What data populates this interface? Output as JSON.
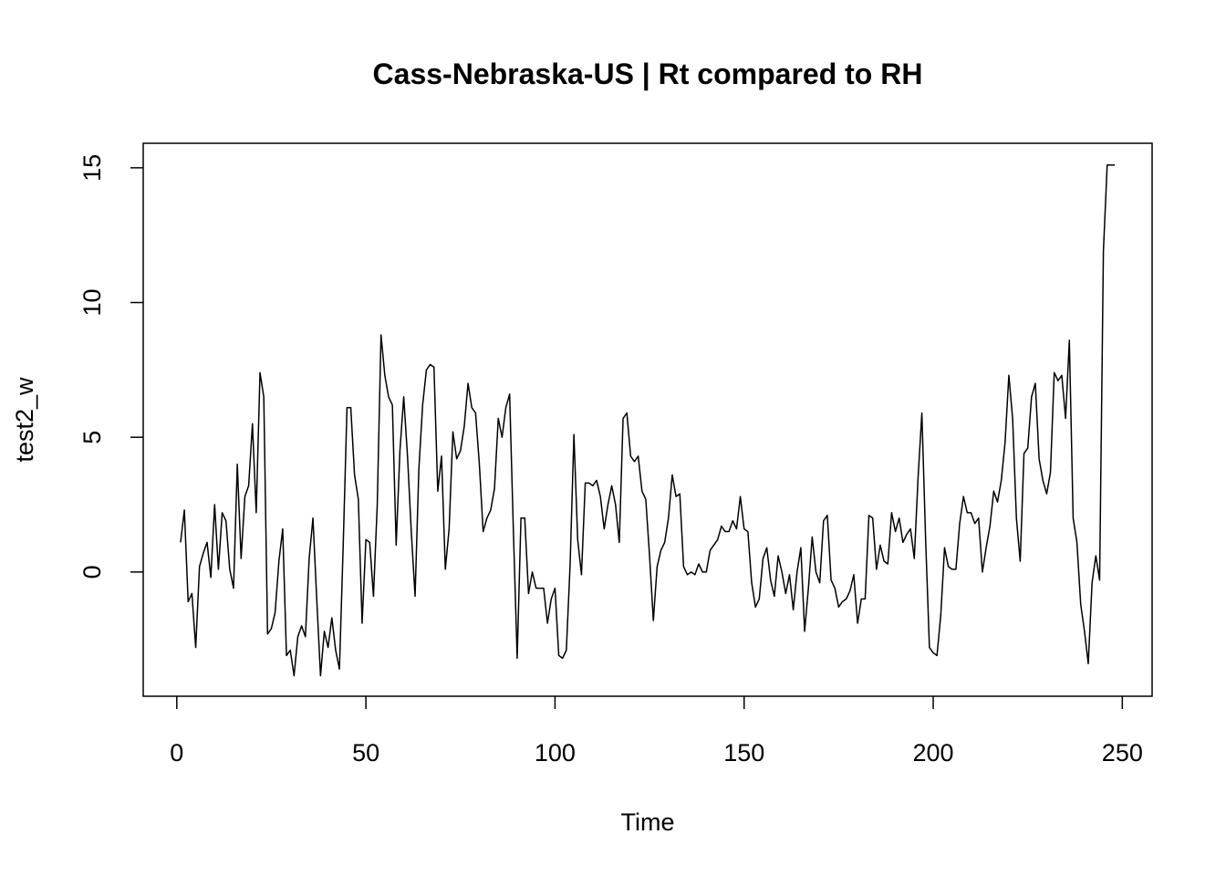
{
  "chart_data": {
    "type": "line",
    "title": "Cass-Nebraska-US | Rt compared to RH",
    "xlabel": "Time",
    "ylabel": "test2_w",
    "color": "#000000",
    "xlim": [
      -8.88,
      257.88
    ],
    "ylim": [
      -4.61,
      15.91
    ],
    "xticks": [
      0,
      50,
      100,
      150,
      200,
      250
    ],
    "yticks": [
      0,
      5,
      10,
      15
    ],
    "x": [
      1,
      2,
      3,
      4,
      5,
      6,
      7,
      8,
      9,
      10,
      11,
      12,
      13,
      14,
      15,
      16,
      17,
      18,
      19,
      20,
      21,
      22,
      23,
      24,
      25,
      26,
      27,
      28,
      29,
      30,
      31,
      32,
      33,
      34,
      35,
      36,
      37,
      38,
      39,
      40,
      41,
      42,
      43,
      44,
      45,
      46,
      47,
      48,
      49,
      50,
      51,
      52,
      53,
      54,
      55,
      56,
      57,
      58,
      59,
      60,
      61,
      62,
      63,
      64,
      65,
      66,
      67,
      68,
      69,
      70,
      71,
      72,
      73,
      74,
      75,
      76,
      77,
      78,
      79,
      80,
      81,
      82,
      83,
      84,
      85,
      86,
      87,
      88,
      89,
      90,
      91,
      92,
      93,
      94,
      95,
      96,
      97,
      98,
      99,
      100,
      101,
      102,
      103,
      104,
      105,
      106,
      107,
      108,
      109,
      110,
      111,
      112,
      113,
      114,
      115,
      116,
      117,
      118,
      119,
      120,
      121,
      122,
      123,
      124,
      125,
      126,
      127,
      128,
      129,
      130,
      131,
      132,
      133,
      134,
      135,
      136,
      137,
      138,
      139,
      140,
      141,
      142,
      143,
      144,
      145,
      146,
      147,
      148,
      149,
      150,
      151,
      152,
      153,
      154,
      155,
      156,
      157,
      158,
      159,
      160,
      161,
      162,
      163,
      164,
      165,
      166,
      167,
      168,
      169,
      170,
      171,
      172,
      173,
      174,
      175,
      176,
      177,
      178,
      179,
      180,
      181,
      182,
      183,
      184,
      185,
      186,
      187,
      188,
      189,
      190,
      191,
      192,
      193,
      194,
      195,
      196,
      197,
      198,
      199,
      200,
      201,
      202,
      203,
      204,
      205,
      206,
      207,
      208,
      209,
      210,
      211,
      212,
      213,
      214,
      215,
      216,
      217,
      218,
      219,
      220,
      221,
      222,
      223,
      224,
      225,
      226,
      227,
      228,
      229,
      230,
      231,
      232,
      233,
      234,
      235,
      236,
      237,
      238,
      239,
      240,
      241,
      242,
      243,
      244,
      245,
      246,
      247,
      248
    ],
    "values": [
      1.1,
      2.3,
      -1.1,
      -0.8,
      -2.8,
      0.2,
      0.7,
      1.1,
      -0.2,
      2.5,
      0.1,
      2.2,
      1.9,
      0.1,
      -0.6,
      4.0,
      0.5,
      2.8,
      3.2,
      5.5,
      2.2,
      7.4,
      6.5,
      -2.3,
      -2.1,
      -1.5,
      0.4,
      1.6,
      -3.1,
      -2.9,
      -3.85,
      -2.4,
      -2.0,
      -2.4,
      0.5,
      2.0,
      -1.0,
      -3.85,
      -2.2,
      -2.8,
      -1.7,
      -2.9,
      -3.6,
      1.0,
      6.1,
      6.1,
      3.6,
      2.7,
      -1.9,
      1.2,
      1.1,
      -0.9,
      2.5,
      8.8,
      7.3,
      6.5,
      6.2,
      1.0,
      4.5,
      6.5,
      4.3,
      1.5,
      -0.9,
      3.8,
      6.2,
      7.5,
      7.7,
      7.6,
      3.0,
      4.3,
      0.1,
      1.6,
      5.2,
      4.2,
      4.5,
      5.4,
      7.0,
      6.1,
      5.9,
      4.0,
      1.5,
      2.0,
      2.3,
      3.1,
      5.7,
      5.0,
      6.1,
      6.6,
      1.5,
      -3.2,
      2.0,
      2.0,
      -0.8,
      0.0,
      -0.6,
      -0.6,
      -0.6,
      -1.9,
      -1.0,
      -0.6,
      -3.1,
      -3.2,
      -2.9,
      0.3,
      5.1,
      1.2,
      -0.1,
      3.3,
      3.3,
      3.2,
      3.4,
      2.8,
      1.6,
      2.5,
      3.2,
      2.5,
      1.1,
      5.7,
      5.9,
      4.3,
      4.1,
      4.3,
      3.0,
      2.7,
      0.6,
      -1.8,
      0.2,
      0.8,
      1.1,
      2.0,
      3.6,
      2.8,
      2.9,
      0.2,
      -0.1,
      0.0,
      -0.1,
      0.3,
      0.0,
      0.0,
      0.8,
      1.0,
      1.2,
      1.7,
      1.5,
      1.5,
      1.9,
      1.6,
      2.8,
      1.6,
      1.5,
      -0.4,
      -1.3,
      -1.0,
      0.5,
      0.9,
      -0.3,
      -0.9,
      0.6,
      0.0,
      -0.8,
      -0.1,
      -1.4,
      0.0,
      0.9,
      -2.2,
      -0.6,
      1.3,
      0.0,
      -0.4,
      1.9,
      2.1,
      -0.3,
      -0.6,
      -1.3,
      -1.1,
      -1.0,
      -0.7,
      -0.1,
      -1.9,
      -1.0,
      -1.0,
      2.1,
      2.0,
      0.1,
      1.0,
      0.4,
      0.3,
      2.2,
      1.5,
      2.0,
      1.1,
      1.4,
      1.6,
      0.5,
      3.5,
      5.9,
      1.2,
      -2.8,
      -3.0,
      -3.1,
      -1.6,
      0.9,
      0.2,
      0.1,
      0.1,
      1.8,
      2.8,
      2.2,
      2.2,
      1.8,
      2.0,
      0.0,
      0.9,
      1.7,
      3.0,
      2.6,
      3.4,
      4.8,
      7.3,
      5.7,
      2.0,
      0.4,
      4.4,
      4.6,
      6.5,
      7.0,
      4.2,
      3.4,
      2.9,
      3.7,
      7.4,
      7.1,
      7.3,
      5.7,
      8.6,
      2.0,
      1.1,
      -1.2,
      -2.2,
      -3.4,
      -0.4,
      0.6,
      -0.3,
      11.9,
      15.1,
      15.1,
      15.1
    ]
  }
}
